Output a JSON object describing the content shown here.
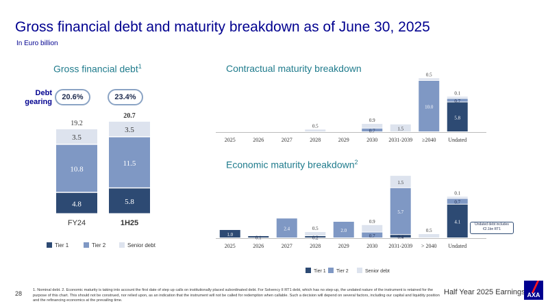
{
  "header": {
    "title": "Gross financial debt and maturity breakdown as of June 30, 2025",
    "subtitle": "In Euro billion"
  },
  "colors": {
    "tier1": "#2d4a73",
    "tier2": "#7f98c4",
    "senior": "#dde3ee",
    "brand": "#00008f",
    "accent": "#1f7b8c"
  },
  "gross": {
    "title": "Gross financial debt",
    "title_sup": "1",
    "gearing_label": "Debt gearing",
    "gearing": [
      "20.6%",
      "23.4%"
    ],
    "legend": [
      "Tier 1",
      "Tier 2",
      "Senior debt"
    ]
  },
  "contractual": {
    "title": "Contractual maturity breakdown"
  },
  "economic": {
    "title": "Economic maturity breakdown",
    "title_sup": "2",
    "legend": [
      "Tier 1",
      "Tier 2",
      "Senior debt"
    ],
    "undated_note": "Undated debt includes €2.1bn RT1"
  },
  "chart_data": [
    {
      "type": "bar",
      "stacked": true,
      "categories": [
        "FY24",
        "1H25"
      ],
      "series": [
        {
          "name": "Tier 1",
          "values": [
            4.8,
            5.8
          ]
        },
        {
          "name": "Tier 2",
          "values": [
            10.8,
            11.5
          ]
        },
        {
          "name": "Senior debt",
          "values": [
            3.5,
            3.5
          ]
        }
      ],
      "totals": [
        "19.2",
        "20.7"
      ],
      "title": "Gross financial debt",
      "legend": "bottom"
    },
    {
      "type": "bar",
      "stacked": true,
      "categories": [
        "2025",
        "2026",
        "2027",
        "2028",
        "2029",
        "2030",
        "2031-2039",
        "≥2040",
        "Undated"
      ],
      "series": [
        {
          "name": "Tier 1",
          "values": [
            0,
            0,
            0,
            0,
            0,
            0,
            0,
            0,
            5.8
          ]
        },
        {
          "name": "Tier 2",
          "values": [
            0,
            0,
            0,
            0,
            0,
            0.7,
            0,
            10.0,
            0.7
          ]
        },
        {
          "name": "Senior debt",
          "values": [
            0,
            0,
            0,
            0.5,
            0,
            0.9,
            1.5,
            0.5,
            0.1
          ]
        }
      ],
      "title": "Contractual maturity breakdown"
    },
    {
      "type": "bar",
      "stacked": true,
      "categories": [
        "2025",
        "2026",
        "2027",
        "2028",
        "2029",
        "2030",
        "2031-2039",
        "> 2040",
        "Undated"
      ],
      "series": [
        {
          "name": "Tier 1",
          "values": [
            1.0,
            0.1,
            0,
            0.2,
            0,
            0,
            0.4,
            0,
            4.1
          ]
        },
        {
          "name": "Tier 2",
          "values": [
            0,
            0,
            2.4,
            0,
            2.0,
            0.7,
            5.7,
            0,
            0.7
          ]
        },
        {
          "name": "Senior debt",
          "values": [
            0,
            0,
            0,
            0.5,
            0,
            0.9,
            1.5,
            0.5,
            0.1
          ]
        }
      ],
      "title": "Economic maturity breakdown",
      "legend": "bottom"
    }
  ],
  "footer": {
    "page_number": "28",
    "footnote": "1. Nominal debt. 2. Economic maturity is taking into account the first date of step up calls on institutionally placed subordinated debt. For Solvency II RT1 debt, which has no step-up, the undated nature of the instrument is retained for the purpose of this chart. This should not be construed, nor relied upon, as an indication that the instrument will not be called for redemption when callable. Such a decision will depend on several factors, including our capital and liquidity position and the refinancing economics at the prevailing time.",
    "brand_text": "Half Year 2025 Earnings",
    "logo": "AXA"
  }
}
